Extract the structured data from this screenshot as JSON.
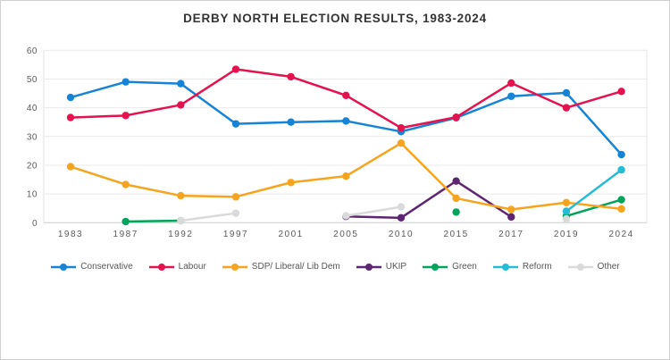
{
  "title": "DERBY NORTH ELECTION RESULTS, 1983-2024",
  "colors": {
    "conservative": "#1583d6",
    "labour": "#e4134f",
    "libdem": "#f6a41d",
    "ukip": "#5e2572",
    "green": "#00a45a",
    "reform": "#25bcd5",
    "other": "#dadada",
    "gridline": "#e9e9e9",
    "axis_line": "#cccccc",
    "tick_text": "#595959",
    "title_text": "#333333"
  },
  "chart_data": {
    "type": "line",
    "title": "DERBY NORTH ELECTION RESULTS, 1983-2024",
    "xlabel": "",
    "ylabel": "",
    "grid": true,
    "legend_position": "bottom",
    "ylim": [
      0,
      60
    ],
    "yticks": [
      0,
      10,
      20,
      30,
      40,
      50,
      60
    ],
    "categories": [
      "1983",
      "1987",
      "1992",
      "1997",
      "2001",
      "2005",
      "2010",
      "2015",
      "2017",
      "2019",
      "2024"
    ],
    "series": [
      {
        "name": "Conservative",
        "color": "#1583d6",
        "values": [
          43.6,
          49.0,
          48.4,
          34.4,
          35.0,
          35.4,
          31.7,
          36.5,
          44.0,
          45.2,
          23.7
        ]
      },
      {
        "name": "Labour",
        "color": "#e4134f",
        "values": [
          36.6,
          37.3,
          41.0,
          53.4,
          50.8,
          44.3,
          33.0,
          36.7,
          48.6,
          40.0,
          45.7
        ]
      },
      {
        "name": "SDP/ Liberal/ Lib Dem",
        "color": "#f6a41d",
        "values": [
          19.5,
          13.3,
          9.4,
          9.0,
          14.0,
          16.2,
          27.7,
          8.5,
          4.6,
          7.0,
          4.8
        ]
      },
      {
        "name": "UKIP",
        "color": "#5e2572",
        "values": [
          null,
          null,
          null,
          null,
          null,
          2.2,
          1.7,
          14.5,
          2.0,
          null,
          null
        ]
      },
      {
        "name": "Green",
        "color": "#00a45a",
        "values": [
          null,
          0.4,
          0.7,
          null,
          null,
          null,
          null,
          3.7,
          null,
          2.3,
          8.0
        ]
      },
      {
        "name": "Reform",
        "color": "#25bcd5",
        "values": [
          null,
          null,
          null,
          null,
          null,
          null,
          null,
          null,
          null,
          4.0,
          18.4
        ]
      },
      {
        "name": "Other",
        "color": "#dadada",
        "values": [
          null,
          null,
          0.7,
          3.3,
          null,
          2.4,
          5.5,
          null,
          null,
          1.3,
          null
        ]
      }
    ],
    "draw_order": [
      "UKIP",
      "Green",
      "Other",
      "SDP/ Liberal/ Lib Dem",
      "Reform",
      "Conservative",
      "Labour"
    ]
  }
}
